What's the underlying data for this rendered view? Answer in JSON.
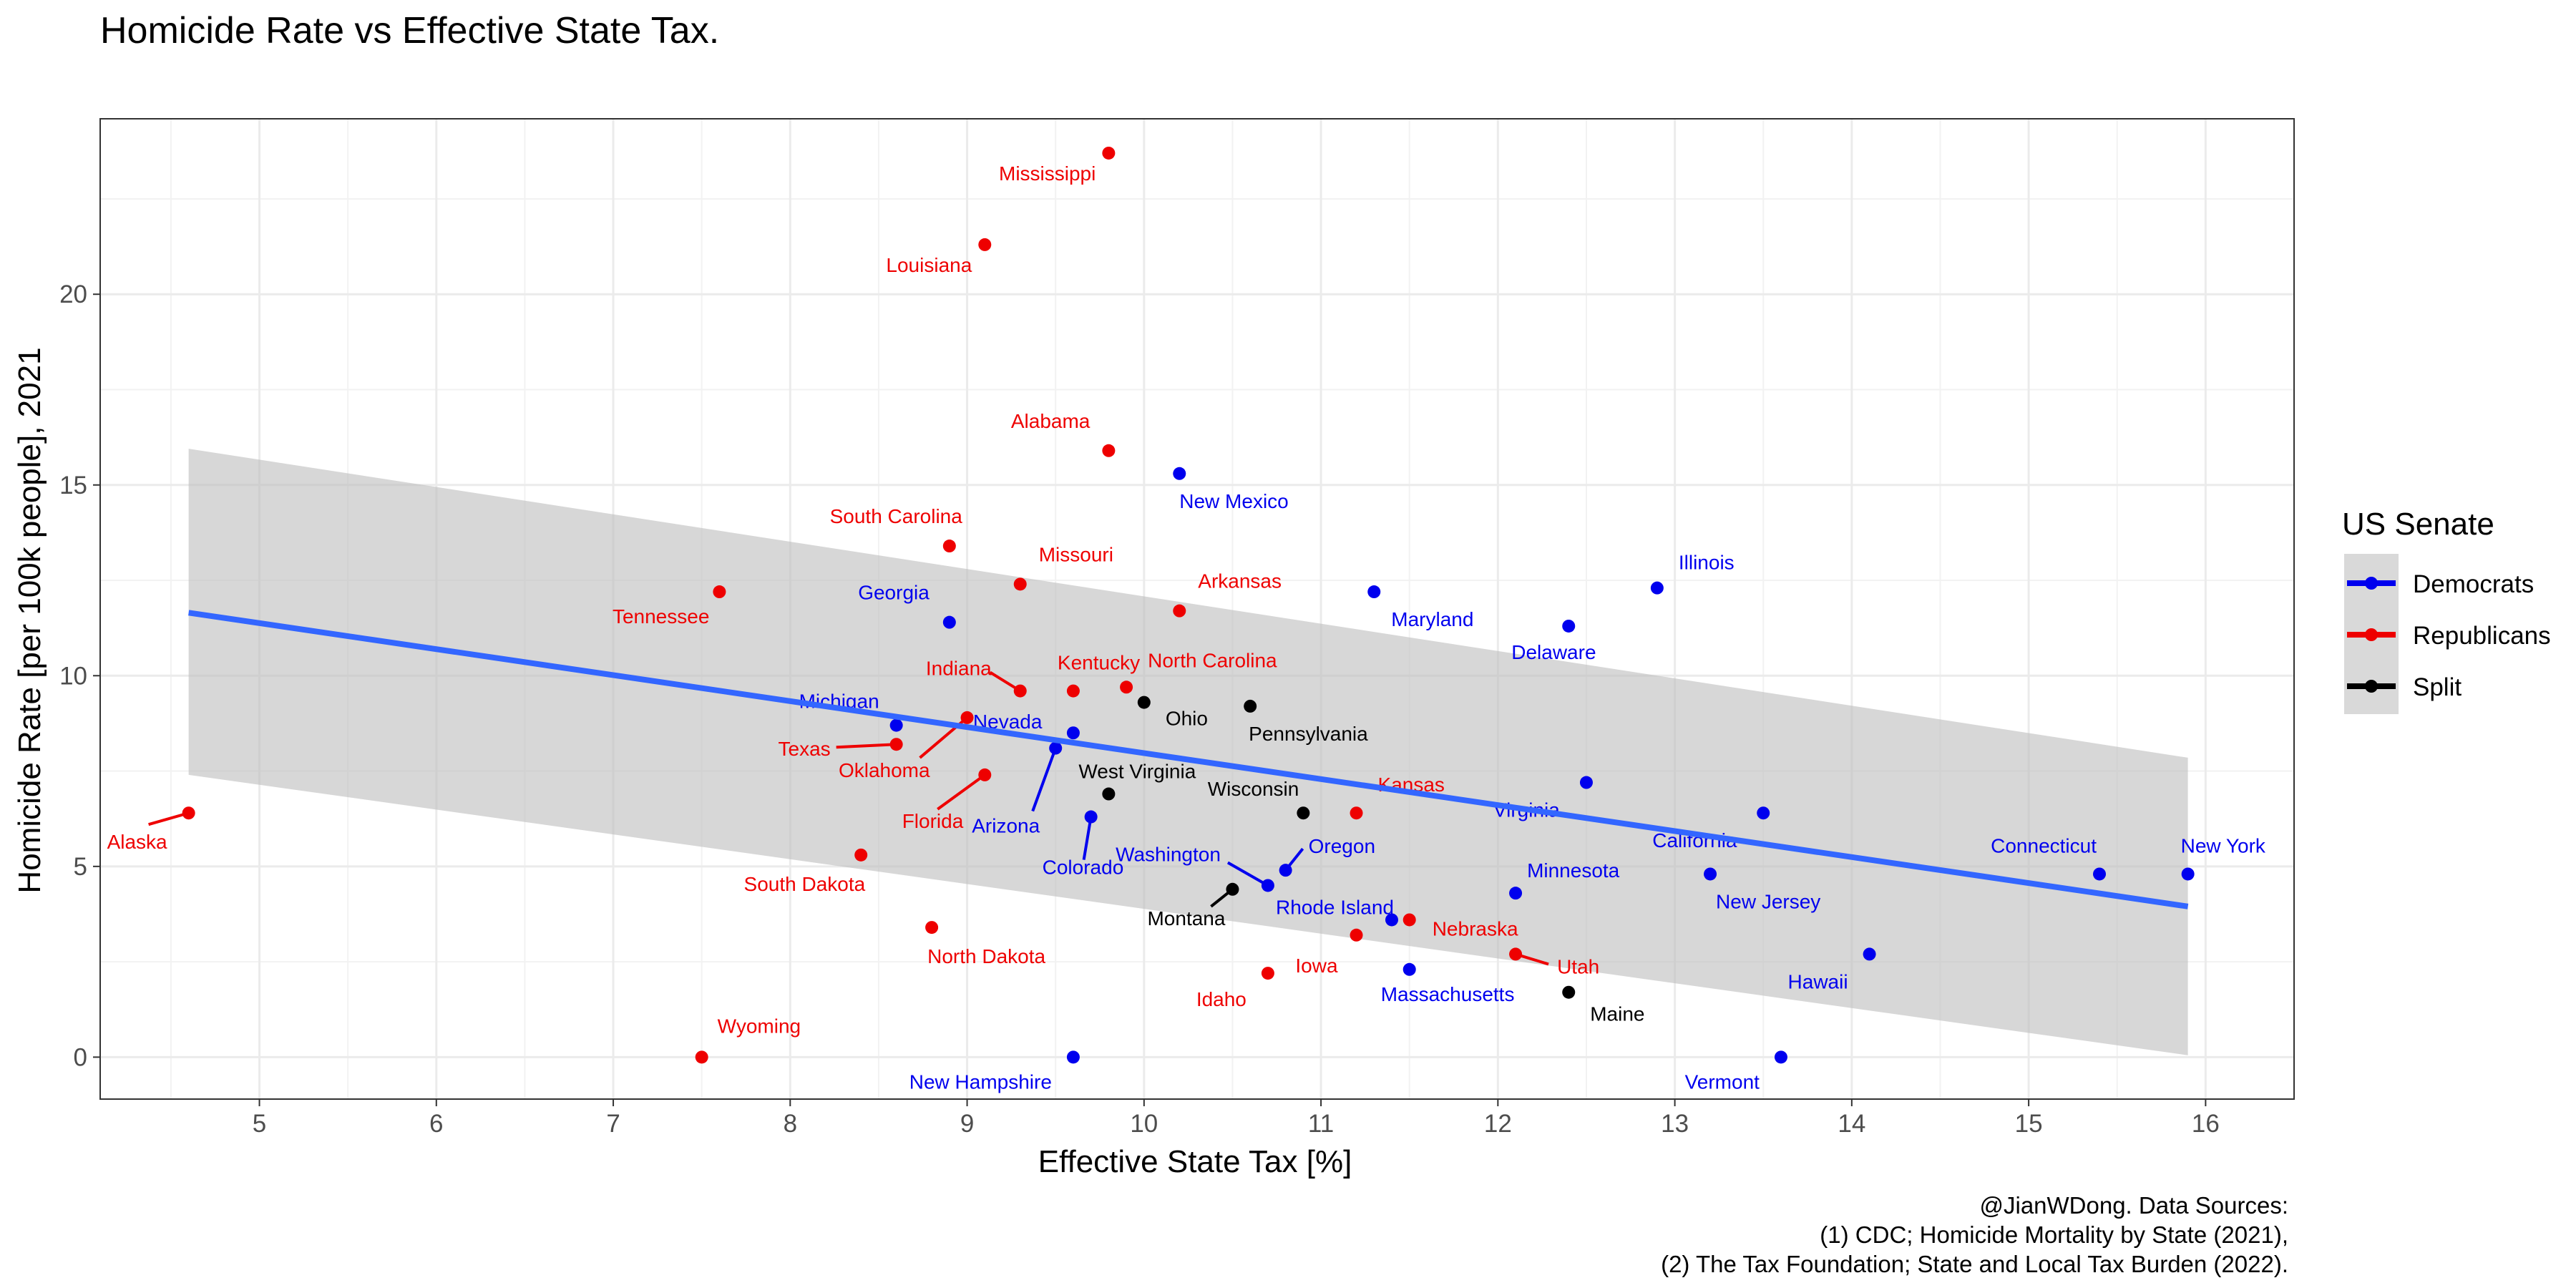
{
  "chart_data": {
    "type": "scatter",
    "title": "Homicide Rate vs Effective State Tax.",
    "xlabel": "Effective State Tax [%]",
    "ylabel": "Homicide Rate [per 100k people], 2021",
    "xlim": [
      4.1,
      16.5
    ],
    "ylim": [
      -1.1,
      24.6
    ],
    "x_ticks": [
      "5",
      "6",
      "7",
      "8",
      "9",
      "10",
      "11",
      "12",
      "13",
      "14",
      "15",
      "16"
    ],
    "y_ticks": [
      "0",
      "5",
      "10",
      "15",
      "20"
    ],
    "grid": true,
    "legend": {
      "title": "US Senate",
      "placement": "right",
      "entries": [
        {
          "label": "Democrats",
          "color": "#0000ee"
        },
        {
          "label": "Republicans",
          "color": "#ee0000"
        },
        {
          "label": "Split",
          "color": "#000000"
        }
      ]
    },
    "trend_line": {
      "method": "linear regression with confidence band",
      "color": "#3366ff",
      "band_color": "#bdbdbd",
      "x": [
        4.6,
        15.9
      ],
      "y": [
        11.65,
        3.95
      ],
      "band_upper": [
        15.95,
        7.85
      ],
      "band_lower": [
        7.4,
        0.05
      ]
    },
    "series": [
      {
        "name": "Democrats",
        "color": "#0000ee",
        "points": [
          {
            "state": "New Mexico",
            "x": 10.2,
            "y": 15.3
          },
          {
            "state": "Illinois",
            "x": 12.9,
            "y": 12.3
          },
          {
            "state": "Maryland",
            "x": 11.3,
            "y": 12.2
          },
          {
            "state": "Georgia",
            "x": 8.9,
            "y": 11.4
          },
          {
            "state": "Delaware",
            "x": 12.4,
            "y": 11.3
          },
          {
            "state": "Michigan",
            "x": 8.6,
            "y": 8.7
          },
          {
            "state": "Nevada",
            "x": 9.6,
            "y": 8.5
          },
          {
            "state": "Arizona",
            "x": 9.5,
            "y": 8.1
          },
          {
            "state": "Virginia",
            "x": 12.5,
            "y": 7.2
          },
          {
            "state": "California",
            "x": 13.5,
            "y": 6.4
          },
          {
            "state": "Colorado",
            "x": 9.7,
            "y": 6.3
          },
          {
            "state": "Oregon",
            "x": 10.8,
            "y": 4.9
          },
          {
            "state": "New Jersey",
            "x": 13.2,
            "y": 4.8
          },
          {
            "state": "Connecticut",
            "x": 15.4,
            "y": 4.8
          },
          {
            "state": "New York",
            "x": 15.9,
            "y": 4.8
          },
          {
            "state": "Washington",
            "x": 10.7,
            "y": 4.5
          },
          {
            "state": "Minnesota",
            "x": 12.1,
            "y": 4.3
          },
          {
            "state": "Rhode Island",
            "x": 11.4,
            "y": 3.6
          },
          {
            "state": "Hawaii",
            "x": 14.1,
            "y": 2.7
          },
          {
            "state": "Massachusetts",
            "x": 11.5,
            "y": 2.3
          },
          {
            "state": "New Hampshire",
            "x": 9.6,
            "y": 0.0
          },
          {
            "state": "Vermont",
            "x": 13.6,
            "y": 0.0
          }
        ]
      },
      {
        "name": "Republicans",
        "color": "#ee0000",
        "points": [
          {
            "state": "Mississippi",
            "x": 9.8,
            "y": 23.7
          },
          {
            "state": "Louisiana",
            "x": 9.1,
            "y": 21.3
          },
          {
            "state": "Alabama",
            "x": 9.8,
            "y": 15.9
          },
          {
            "state": "South Carolina",
            "x": 8.9,
            "y": 13.4
          },
          {
            "state": "Missouri",
            "x": 9.3,
            "y": 12.4
          },
          {
            "state": "Tennessee",
            "x": 7.6,
            "y": 12.2
          },
          {
            "state": "Arkansas",
            "x": 10.2,
            "y": 11.7
          },
          {
            "state": "North Carolina",
            "x": 9.9,
            "y": 9.7
          },
          {
            "state": "Indiana",
            "x": 9.3,
            "y": 9.6
          },
          {
            "state": "Kentucky",
            "x": 9.6,
            "y": 9.6
          },
          {
            "state": "Oklahoma",
            "x": 9.0,
            "y": 8.9
          },
          {
            "state": "Texas",
            "x": 8.6,
            "y": 8.2
          },
          {
            "state": "Florida",
            "x": 9.1,
            "y": 7.4
          },
          {
            "state": "Alaska",
            "x": 4.6,
            "y": 6.4
          },
          {
            "state": "Kansas",
            "x": 11.2,
            "y": 6.4
          },
          {
            "state": "South Dakota",
            "x": 8.4,
            "y": 5.3
          },
          {
            "state": "Nebraska",
            "x": 11.5,
            "y": 3.6
          },
          {
            "state": "North Dakota",
            "x": 8.8,
            "y": 3.4
          },
          {
            "state": "Iowa",
            "x": 11.2,
            "y": 3.2
          },
          {
            "state": "Utah",
            "x": 12.1,
            "y": 2.7
          },
          {
            "state": "Idaho",
            "x": 10.7,
            "y": 2.2
          },
          {
            "state": "Wyoming",
            "x": 7.5,
            "y": 0.0
          }
        ]
      },
      {
        "name": "Split",
        "color": "#000000",
        "points": [
          {
            "state": "Ohio",
            "x": 10.0,
            "y": 9.3
          },
          {
            "state": "Pennsylvania",
            "x": 10.6,
            "y": 9.2
          },
          {
            "state": "West Virginia",
            "x": 9.8,
            "y": 6.9
          },
          {
            "state": "Wisconsin",
            "x": 10.9,
            "y": 6.4
          },
          {
            "state": "Montana",
            "x": 10.5,
            "y": 4.4
          },
          {
            "state": "Maine",
            "x": 12.4,
            "y": 1.7
          }
        ]
      }
    ],
    "caption": [
      "@JianWDong. Data Sources:",
      "(1) CDC; Homicide Mortality by State (2021),",
      "(2) The Tax Foundation; State and Local Tax Burden (2022)."
    ]
  }
}
